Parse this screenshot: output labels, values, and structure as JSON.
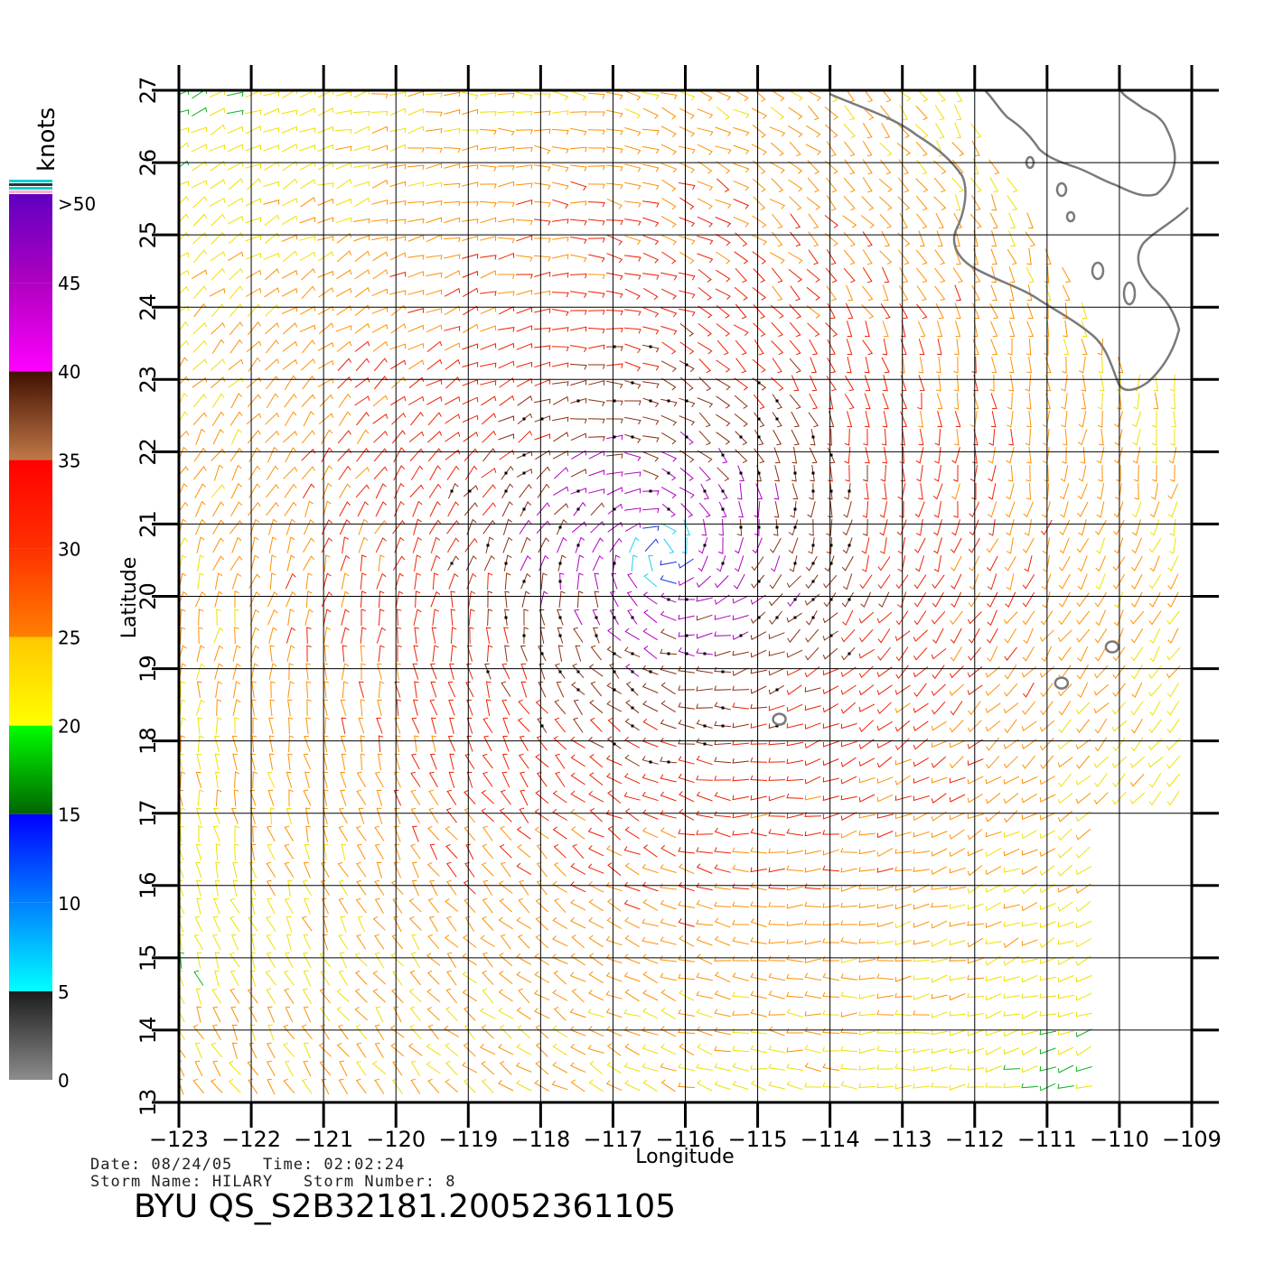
{
  "map": {
    "xlabel": "Longitude",
    "ylabel": "Latitude",
    "lon_range": [
      -123,
      -109
    ],
    "lat_range": [
      13,
      27
    ],
    "lon_ticks": [
      "-123",
      "-122",
      "-121",
      "-120",
      "-119",
      "-118",
      "-117",
      "-116",
      "-115",
      "-114",
      "-113",
      "-112",
      "-111",
      "-110",
      "-109"
    ],
    "lat_ticks": [
      "13",
      "14",
      "15",
      "16",
      "17",
      "18",
      "19",
      "20",
      "21",
      "22",
      "23",
      "24",
      "25",
      "26",
      "27"
    ],
    "grid": true,
    "storm_center": {
      "lon": -116.3,
      "lat": 20.6
    },
    "land_color": "#7a7a7a",
    "islands": [
      {
        "lon": -110.1,
        "lat": 19.3
      },
      {
        "lon": -110.8,
        "lat": 18.8
      },
      {
        "lon": -114.7,
        "lat": 18.3
      }
    ]
  },
  "colorbar": {
    "unit": "knots",
    "labels": [
      ">50",
      "45",
      "40",
      "35",
      "30",
      "25",
      "20",
      "15",
      "10",
      "5",
      "0"
    ],
    "stops": [
      {
        "value": 0,
        "color": "#8c8c8c"
      },
      {
        "value": 5,
        "color": "#1c1c1c"
      },
      {
        "value": 5,
        "color": "#00ffff"
      },
      {
        "value": 10,
        "color": "#0080ff"
      },
      {
        "value": 15,
        "color": "#0000ff"
      },
      {
        "value": 15,
        "color": "#006400"
      },
      {
        "value": 20,
        "color": "#00ff00"
      },
      {
        "value": 20,
        "color": "#ffff00"
      },
      {
        "value": 25,
        "color": "#ffc800"
      },
      {
        "value": 25,
        "color": "#ff8000"
      },
      {
        "value": 30,
        "color": "#ff3000"
      },
      {
        "value": 35,
        "color": "#ff0000"
      },
      {
        "value": 35,
        "color": "#c07848"
      },
      {
        "value": 40,
        "color": "#401000"
      },
      {
        "value": 40,
        "color": "#ff00ff"
      },
      {
        "value": 45,
        "color": "#b000c0"
      },
      {
        "value": 50,
        "color": "#6000c0"
      }
    ]
  },
  "info": {
    "date_line": "Date: 08/24/05   Time: 02:02:24",
    "storm_line": "Storm Name: HILARY   Storm Number: 8",
    "title": "BYU QS_S2B32181.20052361105"
  }
}
